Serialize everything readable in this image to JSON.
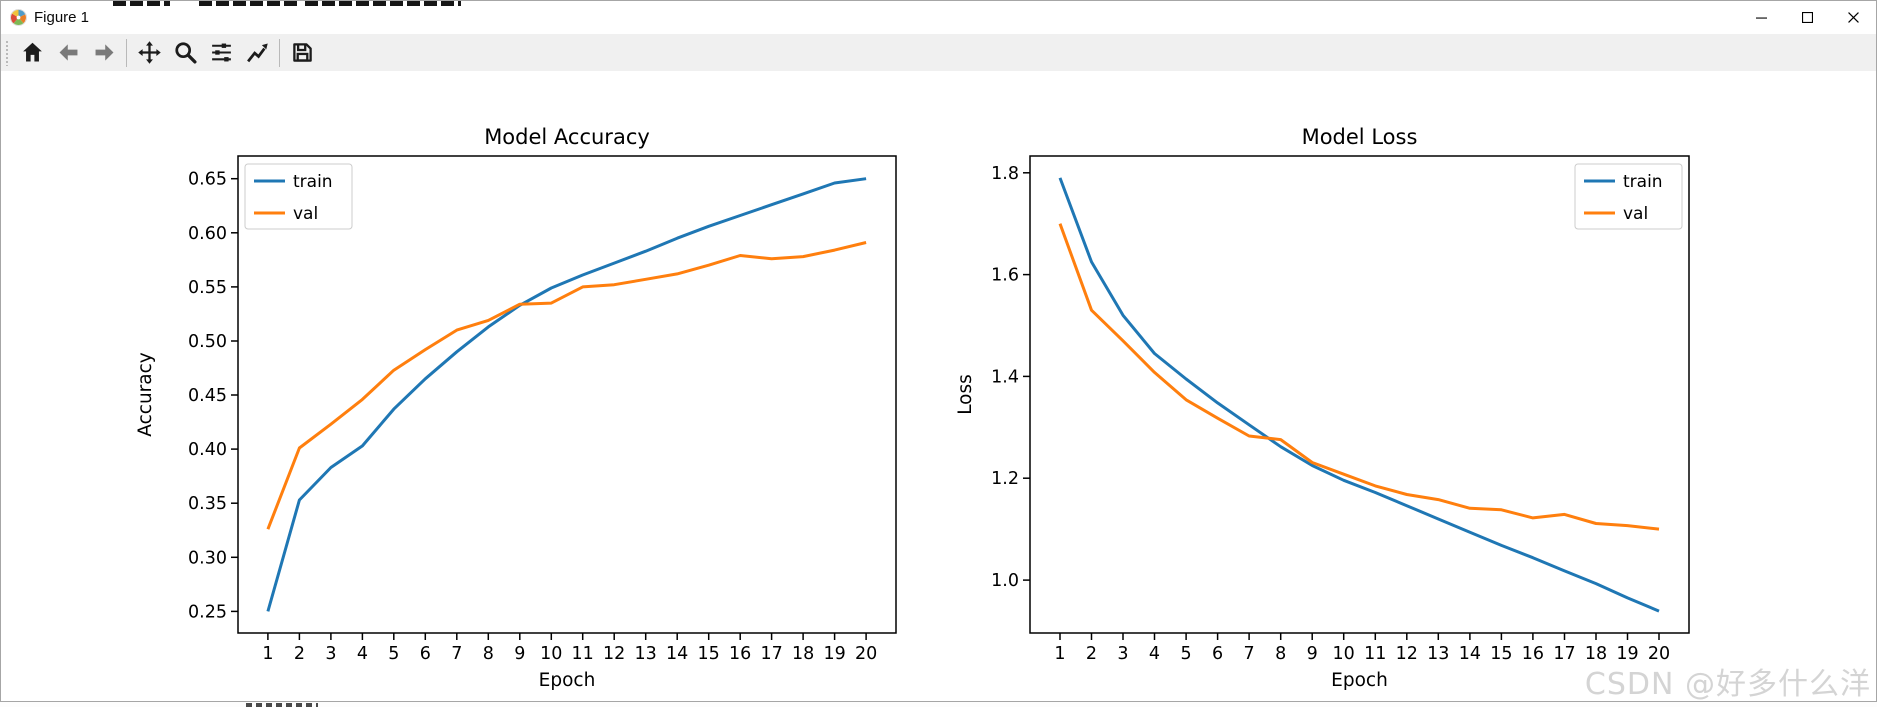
{
  "window": {
    "title": "Figure 1",
    "controls": [
      {
        "name": "minimize",
        "icon": "minimize-icon"
      },
      {
        "name": "maximize",
        "icon": "maximize-icon"
      },
      {
        "name": "close",
        "icon": "close-icon"
      }
    ]
  },
  "toolbar": {
    "buttons": [
      {
        "name": "home",
        "icon": "home-icon"
      },
      {
        "name": "back",
        "icon": "back-arrow-icon"
      },
      {
        "name": "forward",
        "icon": "forward-arrow-icon"
      },
      {
        "name": "pan",
        "icon": "pan-arrows-icon"
      },
      {
        "name": "zoom",
        "icon": "magnifier-icon"
      },
      {
        "name": "configure-subplots",
        "icon": "sliders-icon"
      },
      {
        "name": "edit-axes",
        "icon": "curve-arrow-icon"
      },
      {
        "name": "save",
        "icon": "floppy-disk-icon"
      }
    ],
    "separators_after": [
      "forward",
      "edit-axes"
    ]
  },
  "watermark": "CSDN @好多什么洋",
  "chart_data": [
    {
      "type": "line",
      "title": "Model Accuracy",
      "xlabel": "Epoch",
      "ylabel": "Accuracy",
      "x": [
        1,
        2,
        3,
        4,
        5,
        6,
        7,
        8,
        9,
        10,
        11,
        12,
        13,
        14,
        15,
        16,
        17,
        18,
        19,
        20
      ],
      "xtick_labels": [
        "1",
        "2",
        "3",
        "4",
        "5",
        "6",
        "7",
        "8",
        "9",
        "10",
        "11",
        "12",
        "13",
        "14",
        "15",
        "16",
        "17",
        "18",
        "19",
        "20"
      ],
      "xlim": [
        0.05,
        20.95
      ],
      "ylim": [
        0.23,
        0.671
      ],
      "yticks": [
        0.25,
        0.3,
        0.35,
        0.4,
        0.45,
        0.5,
        0.55,
        0.6,
        0.65
      ],
      "ytick_labels": [
        "0.25",
        "0.30",
        "0.35",
        "0.40",
        "0.45",
        "0.50",
        "0.55",
        "0.60",
        "0.65"
      ],
      "grid": false,
      "legend": {
        "loc": "upper left",
        "entries": [
          "train",
          "val"
        ]
      },
      "series": [
        {
          "name": "train",
          "color": "#1f77b4",
          "values": [
            0.25,
            0.353,
            0.383,
            0.403,
            0.437,
            0.465,
            0.49,
            0.513,
            0.533,
            0.549,
            0.561,
            0.572,
            0.583,
            0.595,
            0.606,
            0.616,
            0.626,
            0.636,
            0.646,
            0.65
          ]
        },
        {
          "name": "val",
          "color": "#ff7f0e",
          "values": [
            0.326,
            0.401,
            0.423,
            0.446,
            0.473,
            0.492,
            0.51,
            0.519,
            0.534,
            0.535,
            0.55,
            0.552,
            0.557,
            0.562,
            0.57,
            0.579,
            0.576,
            0.578,
            0.584,
            0.591
          ]
        }
      ]
    },
    {
      "type": "line",
      "title": "Model Loss",
      "xlabel": "Epoch",
      "ylabel": "Loss",
      "x": [
        1,
        2,
        3,
        4,
        5,
        6,
        7,
        8,
        9,
        10,
        11,
        12,
        13,
        14,
        15,
        16,
        17,
        18,
        19,
        20
      ],
      "xtick_labels": [
        "1",
        "2",
        "3",
        "4",
        "5",
        "6",
        "7",
        "8",
        "9",
        "10",
        "11",
        "12",
        "13",
        "14",
        "15",
        "16",
        "17",
        "18",
        "19",
        "20"
      ],
      "xlim": [
        0.05,
        20.95
      ],
      "ylim": [
        0.896,
        1.833
      ],
      "yticks": [
        1.0,
        1.2,
        1.4,
        1.6,
        1.8
      ],
      "ytick_labels": [
        "1.0",
        "1.2",
        "1.4",
        "1.6",
        "1.8"
      ],
      "grid": false,
      "legend": {
        "loc": "upper right",
        "entries": [
          "train",
          "val"
        ]
      },
      "series": [
        {
          "name": "train",
          "color": "#1f77b4",
          "values": [
            1.79,
            1.625,
            1.52,
            1.445,
            1.395,
            1.348,
            1.305,
            1.262,
            1.225,
            1.196,
            1.172,
            1.146,
            1.12,
            1.094,
            1.068,
            1.044,
            1.018,
            0.993,
            0.965,
            0.939
          ]
        },
        {
          "name": "val",
          "color": "#ff7f0e",
          "values": [
            1.7,
            1.53,
            1.47,
            1.408,
            1.354,
            1.318,
            1.283,
            1.276,
            1.231,
            1.208,
            1.185,
            1.168,
            1.158,
            1.141,
            1.138,
            1.122,
            1.129,
            1.111,
            1.107,
            1.1
          ]
        }
      ]
    }
  ]
}
